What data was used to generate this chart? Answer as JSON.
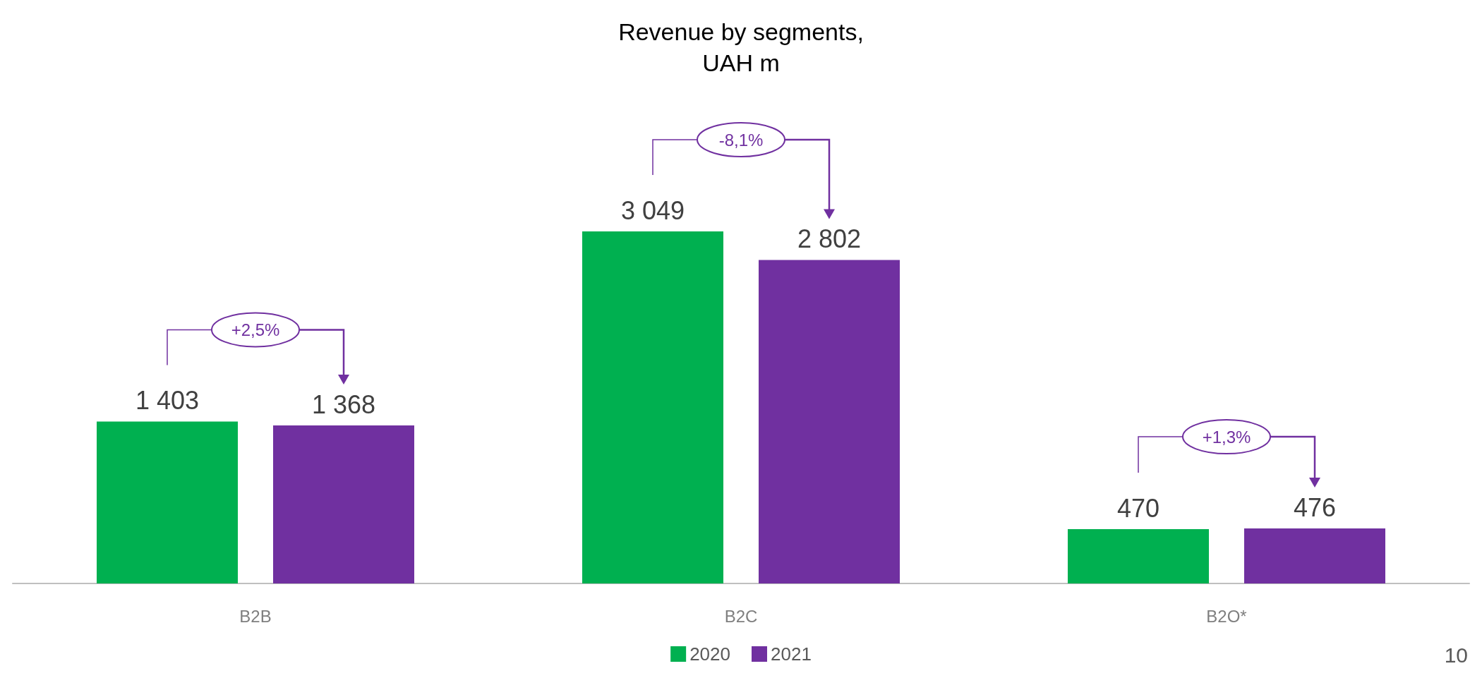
{
  "chart_data": {
    "type": "bar",
    "title": "Revenue by segments,\nUAH m",
    "categories": [
      "B2B",
      "B2C",
      "B2O*"
    ],
    "series": [
      {
        "name": "2020",
        "color": "#00b050",
        "values": [
          1403,
          3049,
          470
        ],
        "value_labels": [
          "1 403",
          "3 049",
          "470"
        ]
      },
      {
        "name": "2021",
        "color": "#7030a0",
        "values": [
          1368,
          2802,
          476
        ],
        "value_labels": [
          "1 368",
          "2 802",
          "476"
        ]
      }
    ],
    "annotations": [
      "+2,5%",
      "-8,1%",
      "+1,3%",
      "10"
    ],
    "legend": "bottom"
  }
}
